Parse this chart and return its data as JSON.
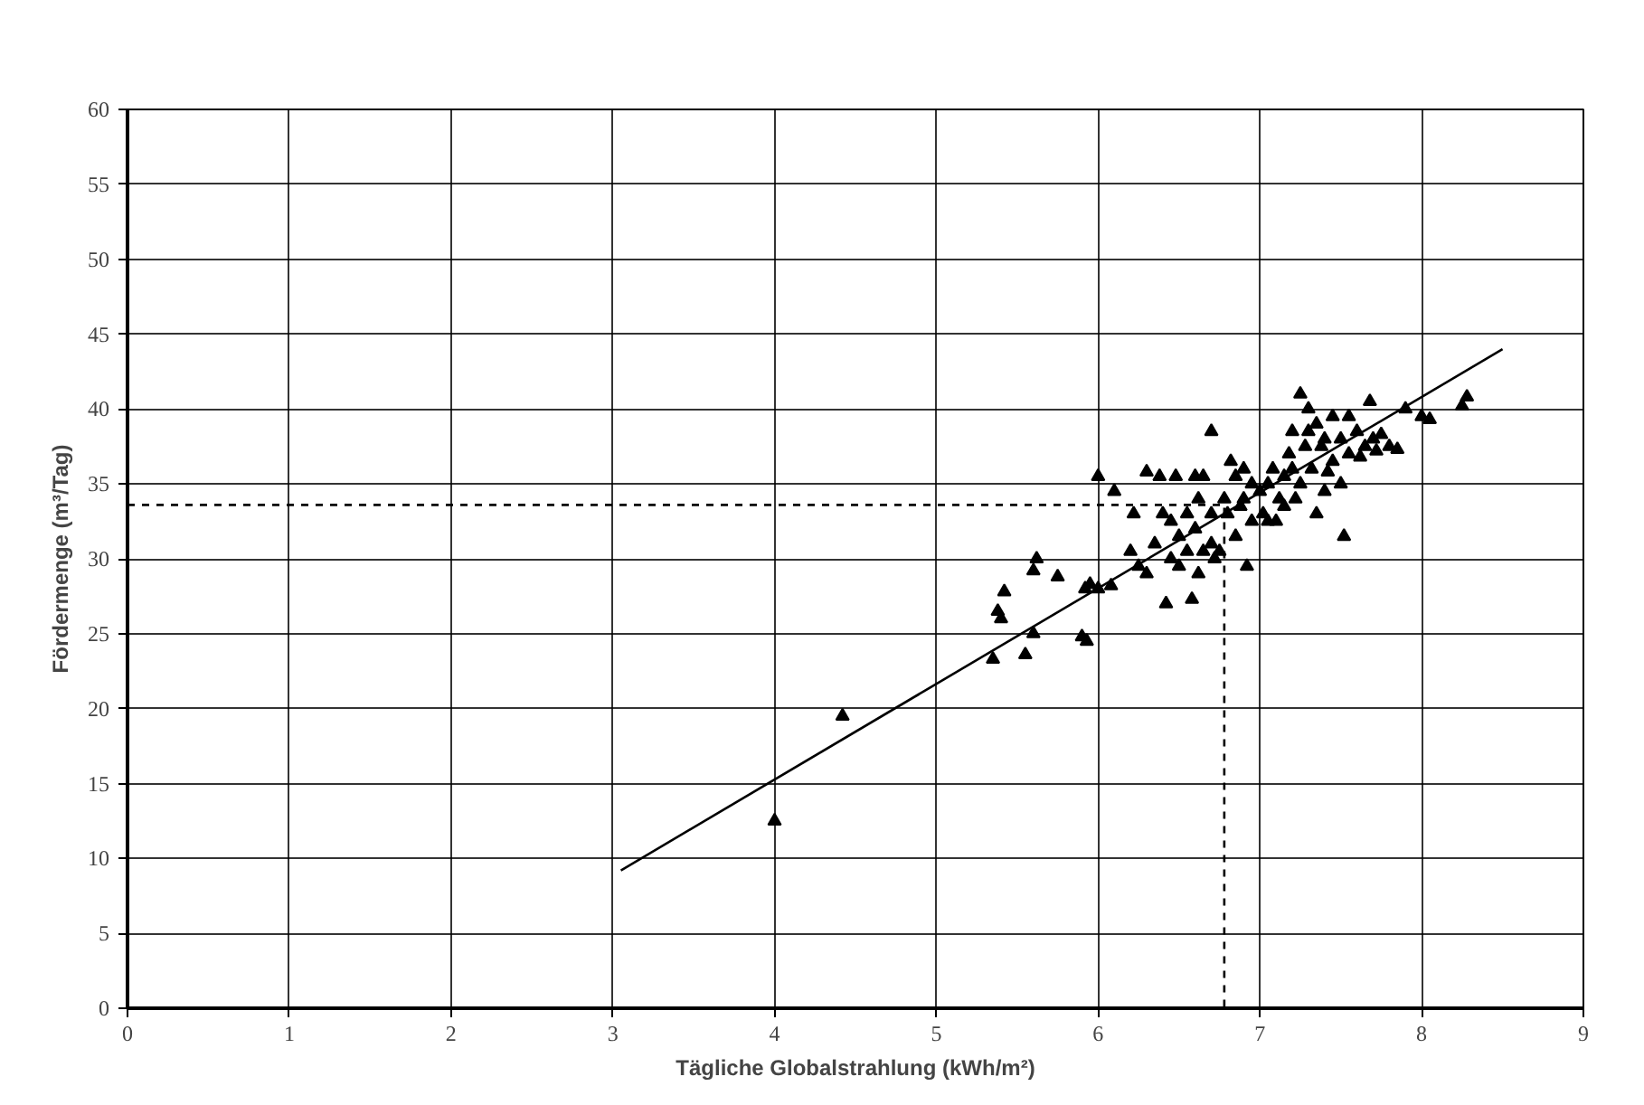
{
  "chart_data": {
    "type": "scatter",
    "xlabel": "Tägliche Globalstrahlung (kWh/m²)",
    "ylabel": "Fördermenge (m³/Tag)",
    "xlim": [
      0,
      9
    ],
    "ylim": [
      0,
      60
    ],
    "xticks": [
      0,
      1,
      2,
      3,
      4,
      5,
      6,
      7,
      8,
      9
    ],
    "yticks": [
      0,
      5,
      10,
      15,
      20,
      25,
      30,
      35,
      40,
      45,
      50,
      55,
      60
    ],
    "grid": true,
    "series": [
      {
        "color": "#000000",
        "marker": "triangle",
        "x": [
          4.0,
          4.42,
          5.35,
          5.38,
          5.4,
          5.42,
          5.55,
          5.6,
          5.6,
          5.62,
          5.75,
          5.9,
          5.93,
          5.92,
          5.95,
          6.0,
          6.0,
          6.08,
          6.1,
          6.2,
          6.22,
          6.25,
          6.3,
          6.3,
          6.35,
          6.38,
          6.4,
          6.42,
          6.45,
          6.45,
          6.48,
          6.5,
          6.5,
          6.55,
          6.55,
          6.58,
          6.6,
          6.6,
          6.62,
          6.62,
          6.65,
          6.65,
          6.7,
          6.7,
          6.7,
          6.72,
          6.75,
          6.78,
          6.8,
          6.82,
          6.85,
          6.85,
          6.88,
          6.9,
          6.9,
          6.92,
          6.95,
          6.95,
          7.0,
          7.02,
          7.05,
          7.05,
          7.08,
          7.1,
          7.12,
          7.15,
          7.15,
          7.18,
          7.2,
          7.2,
          7.22,
          7.25,
          7.25,
          7.28,
          7.3,
          7.3,
          7.32,
          7.35,
          7.35,
          7.38,
          7.4,
          7.4,
          7.42,
          7.45,
          7.45,
          7.5,
          7.5,
          7.52,
          7.55,
          7.55,
          7.6,
          7.62,
          7.65,
          7.68,
          7.7,
          7.72,
          7.75,
          7.8,
          7.85,
          7.9,
          8.0,
          8.05,
          8.25,
          8.28
        ],
        "values": [
          12.5,
          19.5,
          23.3,
          26.5,
          26,
          27.8,
          23.6,
          25,
          29.2,
          30,
          28.8,
          24.8,
          24.5,
          28,
          28.3,
          28,
          35.5,
          28.2,
          34.5,
          30.5,
          33,
          29.5,
          35.8,
          29,
          31,
          35.5,
          33,
          27,
          32.5,
          30,
          35.5,
          31.5,
          29.5,
          33,
          30.5,
          27.3,
          35.5,
          32,
          34,
          29,
          30.5,
          35.5,
          38.5,
          31,
          33,
          30,
          30.5,
          34,
          33,
          36.5,
          35.5,
          31.5,
          33.5,
          36,
          34,
          29.5,
          32.5,
          35,
          34.5,
          33,
          32.5,
          35,
          36,
          32.5,
          34,
          35.5,
          33.5,
          37,
          38.5,
          36,
          34,
          41,
          35,
          37.5,
          40,
          38.5,
          36,
          33,
          39,
          37.5,
          38,
          34.5,
          35.8,
          39.5,
          36.5,
          38,
          35,
          31.5,
          37,
          39.5,
          38.5,
          36.8,
          37.5,
          40.5,
          38,
          37.2,
          38.3,
          37.5,
          37.3,
          40,
          39.5,
          39.3,
          40.2,
          40.8
        ]
      },
      {
        "type": "line",
        "color": "#000000",
        "marker": "none",
        "line_style": "solid",
        "x": [
          3.05,
          8.5
        ],
        "values": [
          9.2,
          44
        ]
      },
      {
        "type": "line",
        "color": "#000000",
        "marker": "none",
        "line_style": "dashed",
        "x": [
          0,
          6.78,
          6.78
        ],
        "values": [
          33.6,
          33.6,
          0
        ]
      }
    ]
  }
}
